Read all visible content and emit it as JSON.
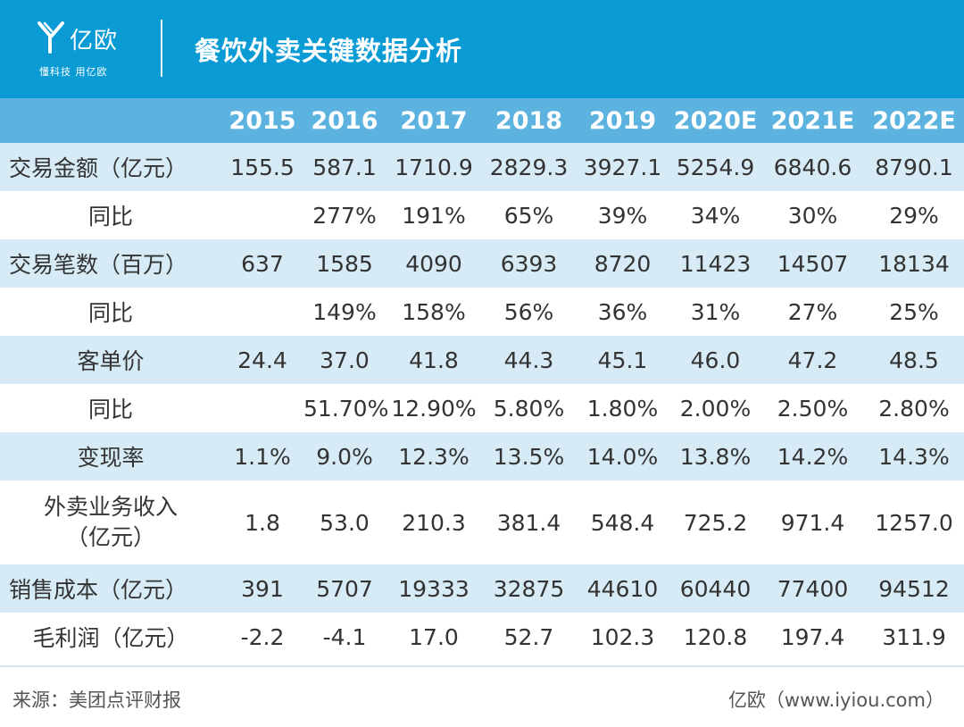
{
  "brand": {
    "name": "亿欧",
    "slogan": "懂科技 用亿欧",
    "primary_color": "#0a9bd5",
    "header_row_color": "#5cb3df",
    "shaded_row_color": "#d6ebf6"
  },
  "title": "餐饮外卖关键数据分析",
  "table": {
    "columns": [
      "",
      "2015",
      "2016",
      "2017",
      "2018",
      "2019",
      "2020E",
      "2021E",
      "2022E"
    ],
    "rows": [
      {
        "label": "交易金额（亿元）",
        "cells": [
          "155.5",
          "587.1",
          "1710.9",
          "2829.3",
          "3927.1",
          "5254.9",
          "6840.6",
          "8790.1"
        ]
      },
      {
        "label": "同比",
        "cells": [
          "",
          "277%",
          "191%",
          "65%",
          "39%",
          "34%",
          "30%",
          "29%"
        ]
      },
      {
        "label": "交易笔数（百万）",
        "cells": [
          "637",
          "1585",
          "4090",
          "6393",
          "8720",
          "11423",
          "14507",
          "18134"
        ]
      },
      {
        "label": "同比",
        "cells": [
          "",
          "149%",
          "158%",
          "56%",
          "36%",
          "31%",
          "27%",
          "25%"
        ]
      },
      {
        "label": "客单价",
        "cells": [
          "24.4",
          "37.0",
          "41.8",
          "44.3",
          "45.1",
          "46.0",
          "47.2",
          "48.5"
        ]
      },
      {
        "label": "同比",
        "cells": [
          "",
          "51.70%",
          "12.90%",
          "5.80%",
          "1.80%",
          "2.00%",
          "2.50%",
          "2.80%"
        ]
      },
      {
        "label": "变现率",
        "cells": [
          "1.1%",
          "9.0%",
          "12.3%",
          "13.5%",
          "14.0%",
          "13.8%",
          "14.2%",
          "14.3%"
        ]
      },
      {
        "label_lines": [
          "外卖业务收入",
          "（亿元）"
        ],
        "cells": [
          "1.8",
          "53.0",
          "210.3",
          "381.4",
          "548.4",
          "725.2",
          "971.4",
          "1257.0"
        ]
      },
      {
        "label": "销售成本（亿元）",
        "cells": [
          "391",
          "5707",
          "19333",
          "32875",
          "44610",
          "60440",
          "77400",
          "94512"
        ]
      },
      {
        "label": "毛利润（亿元）",
        "cells": [
          "-2.2",
          "-4.1",
          "17.0",
          "52.7",
          "102.3",
          "120.8",
          "197.4",
          "311.9"
        ]
      }
    ]
  },
  "footer": {
    "source": "来源：美团点评财报",
    "site": "亿欧（www.iyiou.com）"
  }
}
